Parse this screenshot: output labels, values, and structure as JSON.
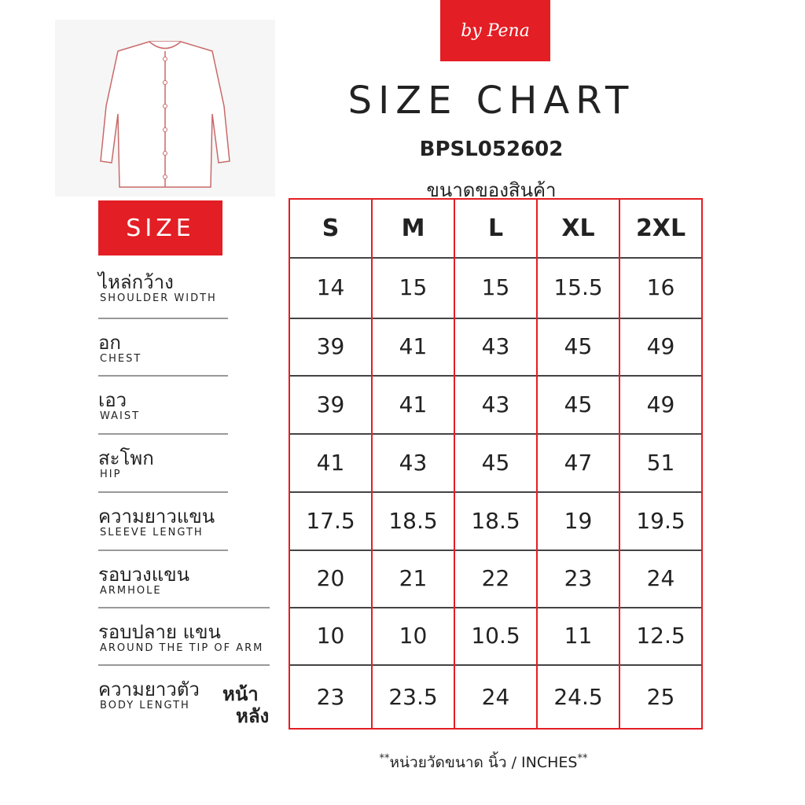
{
  "brand": "by Pena",
  "title": "SIZE CHART",
  "product_code": "BPSL052602",
  "subtitle": "ขนาดของสินค้า",
  "size_label": "SIZE",
  "table": {
    "columns": [
      "S",
      "M",
      "L",
      "XL",
      "2XL"
    ],
    "rows": [
      {
        "thai": "ไหล่กว้าง",
        "english": "SHOULDER WIDTH",
        "values": [
          "14",
          "15",
          "15",
          "15.5",
          "16"
        ]
      },
      {
        "thai": "อก",
        "english": "CHEST",
        "values": [
          "39",
          "41",
          "43",
          "45",
          "49"
        ]
      },
      {
        "thai": "เอว",
        "english": "WAIST",
        "values": [
          "39",
          "41",
          "43",
          "45",
          "49"
        ]
      },
      {
        "thai": "สะโพก",
        "english": "HIP",
        "values": [
          "41",
          "43",
          "45",
          "47",
          "51"
        ]
      },
      {
        "thai": "ความยาวแขน",
        "english": "SLEEVE LENGTH",
        "values": [
          "17.5",
          "18.5",
          "18.5",
          "19",
          "19.5"
        ]
      },
      {
        "thai": "รอบวงแขน",
        "english": "ARMHOLE",
        "values": [
          "20",
          "21",
          "22",
          "23",
          "24"
        ]
      },
      {
        "thai": "รอบปลาย แขน",
        "english": "AROUND THE TIP OF ARM",
        "values": [
          "10",
          "10",
          "10.5",
          "11",
          "12.5"
        ]
      },
      {
        "thai": "ความยาวตัว",
        "english": "BODY LENGTH",
        "note": [
          "หน้า",
          "หลัง"
        ],
        "values": [
          "23",
          "23.5",
          "24",
          "24.5",
          "25"
        ]
      }
    ]
  },
  "footer": {
    "mark_left": "**",
    "text": "หน่วยวัดขนาด  นิ้ว / INCHES",
    "mark_right": "**"
  }
}
